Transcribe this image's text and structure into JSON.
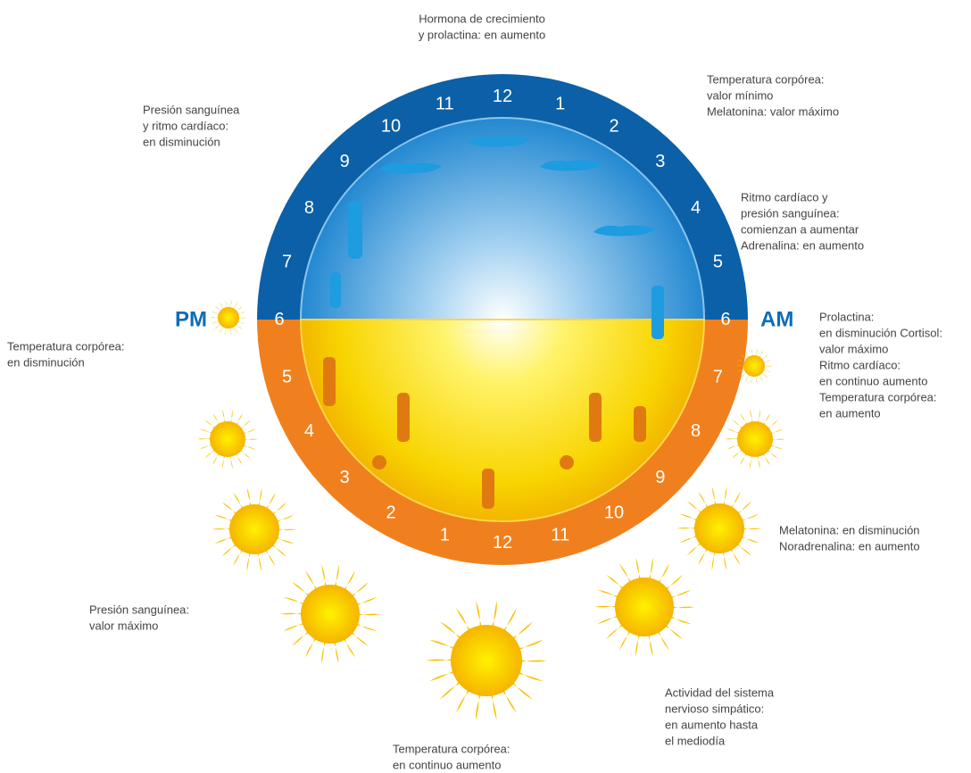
{
  "dial": {
    "top_hours": [
      "6",
      "7",
      "8",
      "9",
      "10",
      "11",
      "12",
      "1",
      "2",
      "3",
      "4",
      "5",
      "6"
    ],
    "bottom_hours": [
      "7",
      "8",
      "9",
      "10",
      "11",
      "12",
      "1",
      "2",
      "3",
      "4",
      "5"
    ],
    "left_label": "PM",
    "right_label": "AM"
  },
  "annotations": [
    {
      "lines": [
        "Hormona de crecimiento",
        "y prolactina: en aumento"
      ]
    },
    {
      "lines": [
        "Temperatura corpórea:",
        "valor mínimo",
        "Melatonina: valor máximo"
      ]
    },
    {
      "lines": [
        "Presión sanguínea",
        "y ritmo cardíaco:",
        "en disminución"
      ]
    },
    {
      "lines": [
        "Ritmo cardíaco y",
        "presión sanguínea:",
        "comienzan a aumentar",
        "Adrenalina: en aumento"
      ]
    },
    {
      "lines": [
        "Prolactina:",
        "en disminución Cortisol:",
        "valor máximo",
        "Ritmo cardíaco:",
        "en continuo aumento",
        "Temperatura corpórea:",
        "en aumento"
      ]
    },
    {
      "lines": [
        "Temperatura corpórea:",
        "en disminución"
      ]
    },
    {
      "lines": [
        "Melatonina: en disminución",
        "Noradrenalina: en aumento"
      ]
    },
    {
      "lines": [
        "Presión sanguínea:",
        "valor máximo"
      ]
    },
    {
      "lines": [
        "Actividad del sistema",
        "nervioso simpático:",
        "en aumento hasta",
        "el mediodía"
      ]
    },
    {
      "lines": [
        "Temperatura corpórea:",
        "en continuo aumento"
      ]
    }
  ]
}
